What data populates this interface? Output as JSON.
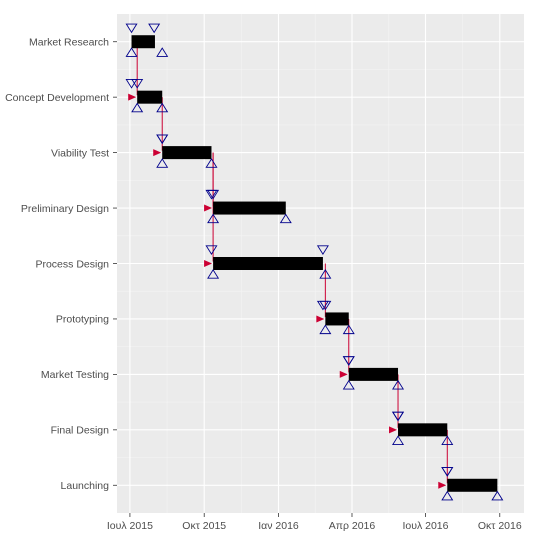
{
  "chart_data": {
    "type": "gantt",
    "title": "",
    "xlabel": "",
    "ylabel": "",
    "x_axis_type": "date",
    "xlim": [
      "2015-06-15",
      "2016-10-31"
    ],
    "x_ticks": [
      {
        "date": "2015-07-01",
        "label": "Ιουλ 2015"
      },
      {
        "date": "2015-10-01",
        "label": "Οκτ 2015"
      },
      {
        "date": "2016-01-01",
        "label": "Ιαν 2016"
      },
      {
        "date": "2016-04-01",
        "label": "Απρ 2016"
      },
      {
        "date": "2016-07-01",
        "label": "Ιουλ 2016"
      },
      {
        "date": "2016-10-01",
        "label": "Οκτ 2016"
      }
    ],
    "grid": true,
    "legend": "none",
    "colors": {
      "panel": "#ebebeb",
      "grid_major": "#ffffff",
      "grid_minor": "#f4f4f4",
      "bar": "#000000",
      "marker": "#00008b",
      "arrow": "#cc0033"
    },
    "tasks": [
      {
        "name": "Market Research",
        "start": "2015-07-03",
        "end": "2015-08-01",
        "early_start": "2015-07-03",
        "late_start": "2015-07-03",
        "early_finish": "2015-07-31",
        "late_finish": "2015-08-10"
      },
      {
        "name": "Concept Development",
        "start": "2015-07-10",
        "end": "2015-08-10",
        "early_start": "2015-07-03",
        "late_start": "2015-07-10",
        "early_finish": "2015-07-10",
        "late_finish": "2015-08-10"
      },
      {
        "name": "Viability Test",
        "start": "2015-08-10",
        "end": "2015-10-10",
        "early_start": "2015-08-10",
        "late_start": "2015-08-10",
        "early_finish": "2015-08-10",
        "late_finish": "2015-10-10"
      },
      {
        "name": "Preliminary Design",
        "start": "2015-10-12",
        "end": "2016-01-10",
        "early_start": "2015-10-10",
        "late_start": "2015-10-12",
        "early_finish": "2015-10-12",
        "late_finish": "2016-01-10"
      },
      {
        "name": "Process Design",
        "start": "2015-10-12",
        "end": "2016-02-25",
        "early_start": "2015-10-10",
        "late_start": "2015-10-12",
        "early_finish": "2016-02-25",
        "late_finish": "2016-02-28"
      },
      {
        "name": "Prototyping",
        "start": "2016-02-28",
        "end": "2016-03-28",
        "early_start": "2016-02-25",
        "late_start": "2016-02-28",
        "early_finish": "2016-02-28",
        "late_finish": "2016-03-28"
      },
      {
        "name": "Market Testing",
        "start": "2016-03-28",
        "end": "2016-05-28",
        "early_start": "2016-03-28",
        "late_start": "2016-03-28",
        "early_finish": "2016-03-28",
        "late_finish": "2016-05-28"
      },
      {
        "name": "Final Design",
        "start": "2016-05-28",
        "end": "2016-07-28",
        "early_start": "2016-05-28",
        "late_start": "2016-05-28",
        "early_finish": "2016-05-28",
        "late_finish": "2016-07-28"
      },
      {
        "name": "Launching",
        "start": "2016-07-28",
        "end": "2016-09-28",
        "early_start": "2016-07-28",
        "late_start": "2016-07-28",
        "early_finish": "2016-07-28",
        "late_finish": "2016-09-28"
      }
    ],
    "dependencies": [
      {
        "from": "Market Research",
        "to": "Concept Development"
      },
      {
        "from": "Concept Development",
        "to": "Viability Test"
      },
      {
        "from": "Viability Test",
        "to": "Preliminary Design"
      },
      {
        "from": "Viability Test",
        "to": "Process Design"
      },
      {
        "from": "Process Design",
        "to": "Prototyping"
      },
      {
        "from": "Prototyping",
        "to": "Market Testing"
      },
      {
        "from": "Market Testing",
        "to": "Final Design"
      },
      {
        "from": "Final Design",
        "to": "Launching"
      }
    ]
  }
}
